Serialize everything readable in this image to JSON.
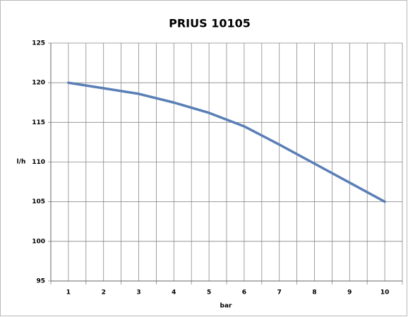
{
  "chart_data": {
    "type": "line",
    "title": "PRIUS 10105",
    "x_label": "bar",
    "y_label": "l/h",
    "categories": [
      "1",
      "2",
      "3",
      "4",
      "5",
      "6",
      "7",
      "8",
      "9",
      "10"
    ],
    "series": [
      {
        "color": "#5a7fb6",
        "values": [
          120,
          119.3,
          118.6,
          117.5,
          116.2,
          114.5,
          112.2,
          109.8,
          107.4,
          105
        ]
      }
    ],
    "ylim": [
      95,
      125
    ],
    "yticks": [
      95,
      100,
      105,
      110,
      115,
      120,
      125
    ],
    "grid": true
  }
}
